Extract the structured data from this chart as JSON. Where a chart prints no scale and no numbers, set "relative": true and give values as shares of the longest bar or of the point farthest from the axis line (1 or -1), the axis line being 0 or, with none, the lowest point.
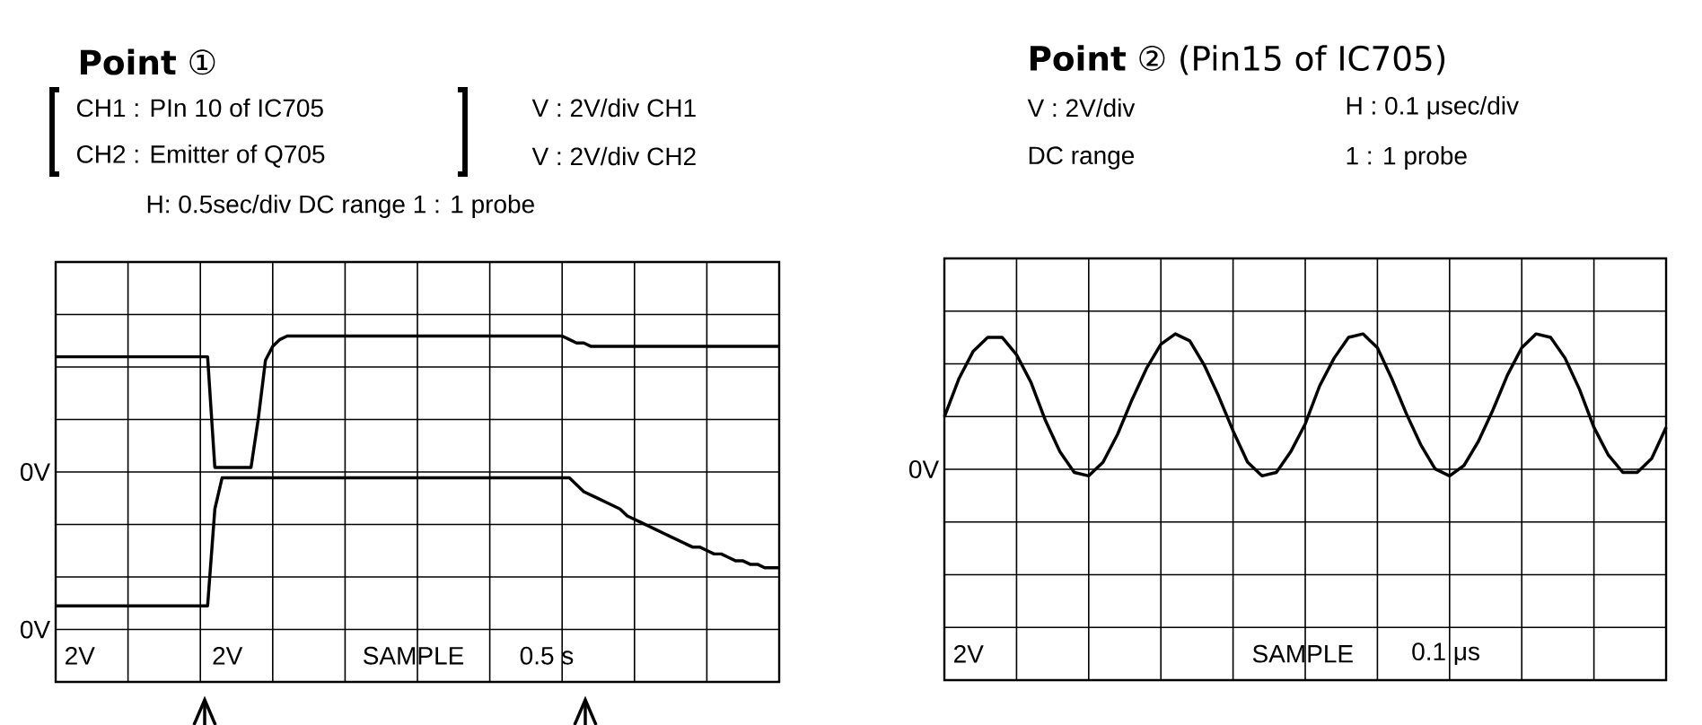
{
  "chart_data": [
    {
      "type": "line",
      "title": "**Point** ①",
      "relative": true,
      "grid": true,
      "marker": "none",
      "categories": [
        null,
        null,
        null,
        null,
        null,
        null,
        null,
        null,
        null,
        null,
        null,
        null,
        null,
        null,
        null,
        null,
        null,
        null,
        null,
        null,
        null,
        null,
        null,
        null,
        null,
        null,
        null,
        null,
        null,
        null,
        null,
        null,
        null,
        null,
        null,
        null,
        null,
        null,
        null,
        null,
        null,
        null,
        null,
        null,
        null,
        null,
        null,
        null,
        null,
        null,
        null,
        null,
        null,
        null,
        null,
        null,
        null,
        null,
        null,
        null,
        null,
        null,
        null,
        null,
        null,
        null,
        null,
        null,
        null,
        null,
        null,
        null,
        null,
        null,
        null,
        null,
        null,
        null,
        null,
        null,
        null,
        null,
        null,
        null,
        null,
        null,
        null,
        null,
        null,
        null,
        null,
        null,
        null,
        null,
        null,
        null,
        null,
        null,
        null,
        null,
        null
      ],
      "annotations": [
        "CH1 : PIn 10 of IC705",
        "CH2 : Emitter of Q705",
        "V : 2V/div CH1",
        "V : 2V/div CH2",
        "H: 0.5sec/div DC range 1 : 1 probe",
        "2V",
        "2V",
        "SAMPLE",
        "0.5 s",
        "0V",
        "0V"
      ],
      "series": [
        {
          "color": "#000000",
          "values": [
            0.94,
            0.94,
            0.94,
            0.94,
            0.94,
            0.94,
            0.94,
            0.94,
            0.94,
            0.94,
            0.94,
            0.94,
            0.94,
            0.94,
            0.94,
            0.94,
            0.94,
            0.94,
            0.94,
            0.94,
            0.94,
            0.94,
            0.62,
            0.62,
            0.62,
            0.62,
            0.62,
            0.62,
            0.76,
            0.93,
            0.97,
            0.99,
            1.0,
            1.0,
            1.0,
            1.0,
            1.0,
            1.0,
            1.0,
            1.0,
            1.0,
            1.0,
            1.0,
            1.0,
            1.0,
            1.0,
            1.0,
            1.0,
            1.0,
            1.0,
            1.0,
            1.0,
            1.0,
            1.0,
            1.0,
            1.0,
            1.0,
            1.0,
            1.0,
            1.0,
            1.0,
            1.0,
            1.0,
            1.0,
            1.0,
            1.0,
            1.0,
            1.0,
            1.0,
            1.0,
            1.0,
            0.99,
            0.98,
            0.98,
            0.97,
            0.97,
            0.97,
            0.97,
            0.97,
            0.97,
            0.97,
            0.97,
            0.97,
            0.97,
            0.97,
            0.97,
            0.97,
            0.97,
            0.97,
            0.97,
            0.97,
            0.97,
            0.97,
            0.97,
            0.97,
            0.97,
            0.97,
            0.97,
            0.97,
            0.97,
            0.97
          ]
        },
        {
          "color": "#000000",
          "values": [
            0.22,
            0.22,
            0.22,
            0.22,
            0.22,
            0.22,
            0.22,
            0.22,
            0.22,
            0.22,
            0.22,
            0.22,
            0.22,
            0.22,
            0.22,
            0.22,
            0.22,
            0.22,
            0.22,
            0.22,
            0.22,
            0.22,
            0.5,
            0.59,
            0.59,
            0.59,
            0.59,
            0.59,
            0.59,
            0.59,
            0.59,
            0.59,
            0.59,
            0.59,
            0.59,
            0.59,
            0.59,
            0.59,
            0.59,
            0.59,
            0.59,
            0.59,
            0.59,
            0.59,
            0.59,
            0.59,
            0.59,
            0.59,
            0.59,
            0.59,
            0.59,
            0.59,
            0.59,
            0.59,
            0.59,
            0.59,
            0.59,
            0.59,
            0.59,
            0.59,
            0.59,
            0.59,
            0.59,
            0.59,
            0.59,
            0.59,
            0.59,
            0.59,
            0.59,
            0.59,
            0.59,
            0.59,
            0.57,
            0.55,
            0.54,
            0.53,
            0.52,
            0.51,
            0.5,
            0.48,
            0.47,
            0.46,
            0.45,
            0.44,
            0.43,
            0.42,
            0.41,
            0.4,
            0.39,
            0.39,
            0.38,
            0.37,
            0.37,
            0.36,
            0.35,
            0.35,
            0.34,
            0.34,
            0.33,
            0.33,
            0.33
          ]
        }
      ]
    },
    {
      "type": "line",
      "title": "**Point** ② (Pin15 of IC705)",
      "relative": true,
      "grid": true,
      "marker": "none",
      "categories": [
        null,
        null,
        null,
        null,
        null,
        null,
        null,
        null,
        null,
        null,
        null,
        null,
        null,
        null,
        null,
        null,
        null,
        null,
        null,
        null,
        null,
        null,
        null,
        null,
        null,
        null,
        null,
        null,
        null,
        null,
        null,
        null,
        null,
        null,
        null,
        null,
        null,
        null,
        null,
        null,
        null,
        null,
        null,
        null,
        null,
        null,
        null,
        null,
        null,
        null,
        null
      ],
      "annotations": [
        "V : 2V/div",
        "H : 0.1 μsec/div",
        "DC range",
        "1 : 1 probe",
        "2V",
        "SAMPLE",
        "0.1 μs",
        "0V"
      ],
      "series": [
        {
          "color": "#000000",
          "values": [
            0.76,
            0.87,
            0.95,
            0.99,
            0.99,
            0.94,
            0.86,
            0.75,
            0.66,
            0.6,
            0.59,
            0.63,
            0.71,
            0.81,
            0.9,
            0.97,
            1.0,
            0.98,
            0.91,
            0.82,
            0.72,
            0.63,
            0.59,
            0.6,
            0.66,
            0.74,
            0.85,
            0.93,
            0.99,
            1.0,
            0.96,
            0.87,
            0.77,
            0.68,
            0.61,
            0.59,
            0.62,
            0.69,
            0.78,
            0.88,
            0.96,
            1.0,
            0.99,
            0.93,
            0.84,
            0.73,
            0.65,
            0.6,
            0.6,
            0.64,
            0.73
          ]
        }
      ]
    }
  ]
}
